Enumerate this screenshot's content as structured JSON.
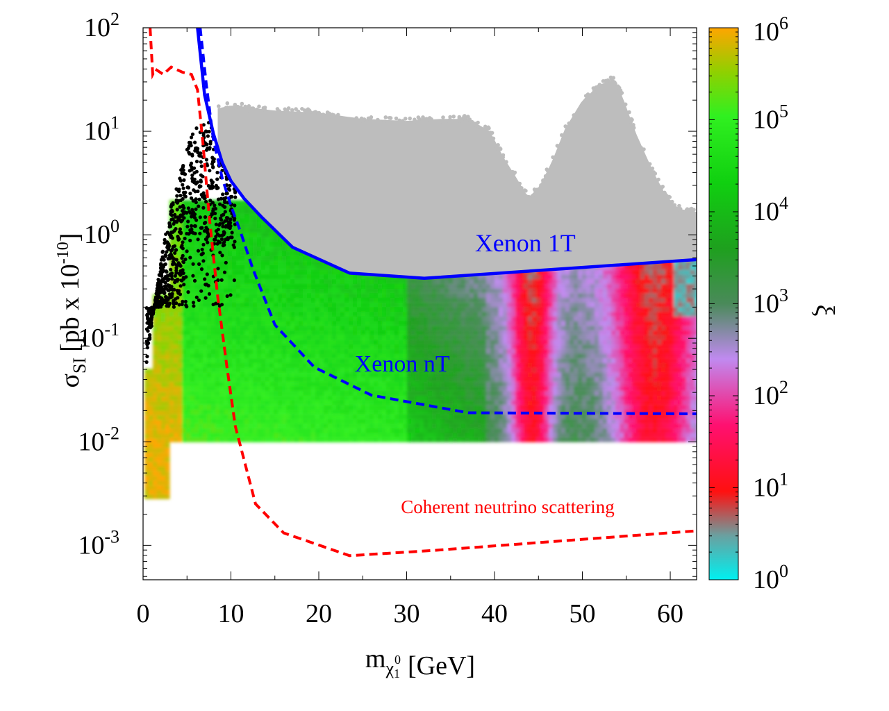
{
  "chart_data": {
    "type": "scatter",
    "title": "",
    "xlabel": {
      "base": "m",
      "sub": "χ",
      "subsub": "1",
      "sup": "0",
      "unit": "[GeV]"
    },
    "ylabel": {
      "base": "σ",
      "sub": "SI",
      "unit": "[pb x 10",
      "exp": "-10",
      "close": "]"
    },
    "xlim": [
      0,
      63
    ],
    "ylim_log10": [
      -3.333,
      2
    ],
    "yscale": "log",
    "x_ticks": [
      {
        "value": 0,
        "label": "0"
      },
      {
        "value": 10,
        "label": "10"
      },
      {
        "value": 20,
        "label": "20"
      },
      {
        "value": 30,
        "label": "30"
      },
      {
        "value": 40,
        "label": "40"
      },
      {
        "value": 50,
        "label": "50"
      },
      {
        "value": 60,
        "label": "60"
      }
    ],
    "y_ticks": [
      {
        "exp": -3,
        "base": "10",
        "sup": "-3"
      },
      {
        "exp": -2,
        "base": "10",
        "sup": "-2"
      },
      {
        "exp": -1,
        "base": "10",
        "sup": "-1"
      },
      {
        "exp": 0,
        "base": "10",
        "sup": "0"
      },
      {
        "exp": 1,
        "base": "10",
        "sup": "1"
      },
      {
        "exp": 2,
        "base": "10",
        "sup": "2"
      }
    ],
    "colorbar": {
      "label": "ξ",
      "scale": "log",
      "range_log10": [
        0,
        6
      ],
      "ticks": [
        {
          "exp": 0,
          "base": "10",
          "sup": "0"
        },
        {
          "exp": 1,
          "base": "10",
          "sup": "1"
        },
        {
          "exp": 2,
          "base": "10",
          "sup": "2"
        },
        {
          "exp": 3,
          "base": "10",
          "sup": "3"
        },
        {
          "exp": 4,
          "base": "10",
          "sup": "4"
        },
        {
          "exp": 5,
          "base": "10",
          "sup": "5"
        },
        {
          "exp": 6,
          "base": "10",
          "sup": "6"
        }
      ],
      "stops": [
        {
          "t": 0.0,
          "color": "#00f0f0"
        },
        {
          "t": 0.08,
          "color": "#6aa0a0"
        },
        {
          "t": 0.16,
          "color": "#ff1010"
        },
        {
          "t": 0.28,
          "color": "#ff1070"
        },
        {
          "t": 0.4,
          "color": "#c08af0"
        },
        {
          "t": 0.5,
          "color": "#4a8a5a"
        },
        {
          "t": 0.6,
          "color": "#1ea01e"
        },
        {
          "t": 0.72,
          "color": "#10d010"
        },
        {
          "t": 0.84,
          "color": "#30f020"
        },
        {
          "t": 0.92,
          "color": "#90d000"
        },
        {
          "t": 1.0,
          "color": "#ffa500"
        }
      ]
    },
    "series": [
      {
        "name": "Xenon 1T",
        "style": "solid",
        "color": "#0000ff",
        "x": [
          6.2,
          7.0,
          8.0,
          9.0,
          10.0,
          11.5,
          13.5,
          17.0,
          23.5,
          32.0,
          63.0
        ],
        "y_log10": [
          2.0,
          1.35,
          0.98,
          0.7,
          0.52,
          0.35,
          0.17,
          -0.12,
          -0.37,
          -0.42,
          -0.24
        ]
      },
      {
        "name": "Xenon nT",
        "style": "dashed",
        "color": "#0000ff",
        "x": [
          6.5,
          7.2,
          8.0,
          9.0,
          10.0,
          11.0,
          12.5,
          15.0,
          19.5,
          26.0,
          37.0,
          63.0
        ],
        "y_log10": [
          2.0,
          1.45,
          0.92,
          0.55,
          0.28,
          0.05,
          -0.33,
          -0.87,
          -1.28,
          -1.55,
          -1.72,
          -1.73
        ]
      },
      {
        "name": "Coherent neutrino scattering",
        "style": "dashed",
        "color": "#ff0000",
        "x": [
          0.8,
          1.1,
          1.4,
          2.3,
          3.2,
          4.5,
          5.5,
          6.2,
          6.8,
          7.5,
          8.5,
          9.5,
          10.5,
          12.8,
          16.0,
          23.5,
          33.0,
          63.0
        ],
        "y_log10": [
          2.0,
          1.55,
          1.6,
          1.55,
          1.62,
          1.57,
          1.55,
          1.4,
          0.9,
          0.2,
          -0.6,
          -1.25,
          -1.85,
          -2.6,
          -2.88,
          -3.1,
          -3.05,
          -2.86
        ]
      }
    ],
    "curve_labels": [
      {
        "series": "Xenon 1T",
        "text": "Xenon 1T",
        "x": 43.5,
        "y_log10": -0.16,
        "color": "#0000ff",
        "size": 36
      },
      {
        "series": "Xenon nT",
        "text": "Xenon nT",
        "x": 29.5,
        "y_log10": -1.32,
        "color": "#0000ff",
        "size": 34
      },
      {
        "series": "Coherent neutrino scattering",
        "text": "Coherent neutrino scattering",
        "x": 41.5,
        "y_log10": -2.69,
        "color": "#ff0000",
        "size": 27
      }
    ],
    "scatter_regions": {
      "excluded_gray": {
        "color": "#bdbdbd",
        "upper_x": [
          8.5,
          10,
          12,
          15,
          20,
          25,
          30,
          34,
          37,
          39.5,
          41,
          42.5,
          43.8,
          45,
          46.5,
          48,
          50,
          52,
          53.5,
          54.5,
          56,
          58,
          59.5,
          61,
          63
        ],
        "upper_log10": [
          1.22,
          1.25,
          1.23,
          1.2,
          1.18,
          1.12,
          1.1,
          1.12,
          1.12,
          1.0,
          0.75,
          0.55,
          0.36,
          0.45,
          0.7,
          1.02,
          1.3,
          1.45,
          1.5,
          1.35,
          1.0,
          0.62,
          0.38,
          0.25,
          0.22
        ]
      },
      "black": {
        "color": "#000000",
        "x_range": [
          0.4,
          10.5
        ]
      },
      "allowed_colored": {
        "lower_log10": -2.0
      }
    }
  }
}
